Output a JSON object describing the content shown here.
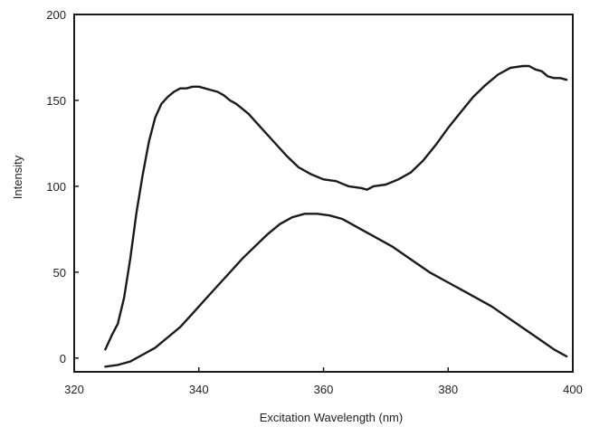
{
  "chart_data": {
    "type": "line",
    "title": "",
    "xlabel": "Excitation Wavelength (nm)",
    "ylabel": "Intensity",
    "xlim": [
      320,
      400
    ],
    "ylim": [
      -8,
      200
    ],
    "xticks": [
      320,
      340,
      360,
      380,
      400
    ],
    "xtick_labels": [
      "320",
      "340",
      "360",
      "380",
      "400"
    ],
    "yticks": [
      0,
      50,
      100,
      150,
      200
    ],
    "ytick_labels": [
      "0",
      "50",
      "100",
      "150",
      "200"
    ],
    "grid": false,
    "legend": "none",
    "line_color": "#1a1a1a",
    "series": [
      {
        "x": [
          325,
          326,
          327,
          328,
          329,
          330,
          331,
          332,
          333,
          334,
          335,
          336,
          337,
          338,
          339,
          340,
          341,
          342,
          343,
          344,
          345,
          346,
          348,
          350,
          352,
          354,
          356,
          358,
          360,
          362,
          364,
          366,
          367,
          368,
          370,
          372,
          374,
          376,
          378,
          380,
          382,
          384,
          386,
          388,
          390,
          392,
          393,
          394,
          395,
          396,
          397,
          398,
          399
        ],
        "y": [
          5,
          13,
          20,
          35,
          58,
          85,
          107,
          126,
          140,
          148,
          152,
          155,
          157,
          157,
          158,
          158,
          157,
          156,
          155,
          153,
          150,
          148,
          142,
          134,
          126,
          118,
          111,
          107,
          104,
          103,
          100,
          99,
          98,
          100,
          101,
          104,
          108,
          115,
          124,
          134,
          143,
          152,
          159,
          165,
          169,
          170,
          170,
          168,
          167,
          164,
          163,
          163,
          162
        ]
      },
      {
        "x": [
          325,
          327,
          329,
          331,
          333,
          335,
          337,
          339,
          341,
          343,
          345,
          347,
          349,
          351,
          353,
          355,
          357,
          359,
          361,
          363,
          365,
          367,
          369,
          371,
          373,
          375,
          377,
          379,
          381,
          383,
          385,
          387,
          389,
          391,
          393,
          395,
          397,
          399
        ],
        "y": [
          -5,
          -4,
          -2,
          2,
          6,
          12,
          18,
          26,
          34,
          42,
          50,
          58,
          65,
          72,
          78,
          82,
          84,
          84,
          83,
          81,
          77,
          73,
          69,
          65,
          60,
          55,
          50,
          46,
          42,
          38,
          34,
          30,
          25,
          20,
          15,
          10,
          5,
          1
        ]
      }
    ]
  }
}
